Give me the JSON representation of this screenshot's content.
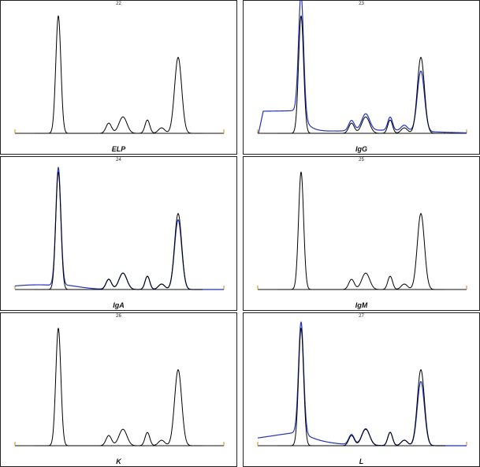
{
  "chart_data": [
    {
      "type": "line",
      "number": "22",
      "label": "ELP",
      "series": [
        {
          "color": "#000000",
          "curve": "elp"
        }
      ]
    },
    {
      "type": "line",
      "number": "23",
      "label": "IgG",
      "series": [
        {
          "color": "#000000",
          "curve": "elp"
        },
        {
          "color": "#2233bb",
          "curve": "igg"
        }
      ]
    },
    {
      "type": "line",
      "number": "24",
      "label": "IgA",
      "series": [
        {
          "color": "#000000",
          "curve": "elp"
        },
        {
          "color": "#2233bb",
          "curve": "iga"
        }
      ]
    },
    {
      "type": "line",
      "number": "25",
      "label": "IgM",
      "series": [
        {
          "color": "#000000",
          "curve": "elp"
        },
        {
          "color": "#2233bb",
          "curve": "igm"
        }
      ]
    },
    {
      "type": "line",
      "number": "26",
      "label": "K",
      "series": [
        {
          "color": "#000000",
          "curve": "elp"
        },
        {
          "color": "#2233bb",
          "curve": "kappa"
        }
      ]
    },
    {
      "type": "line",
      "number": "27",
      "label": "L",
      "series": [
        {
          "color": "#000000",
          "curve": "elp"
        },
        {
          "color": "#2233bb",
          "curve": "lambda"
        }
      ]
    }
  ]
}
